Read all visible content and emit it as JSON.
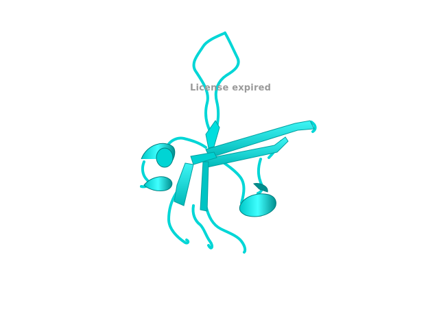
{
  "viewer": {
    "watermark_text": "License expired",
    "background_color": "#ffffff",
    "cartoon_color": "#00e5e5",
    "cartoon_shadow_color": "#008a8a",
    "watermark_color": "#9a9a9a"
  }
}
